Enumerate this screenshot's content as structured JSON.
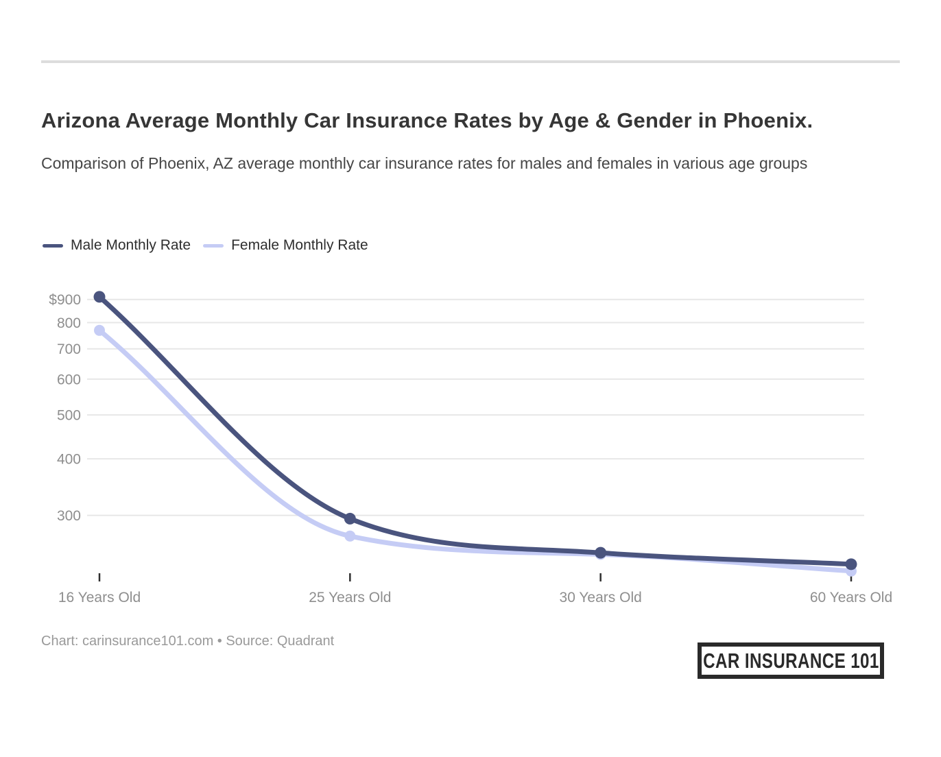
{
  "chart_data": {
    "type": "line",
    "title": "Arizona Average Monthly Car Insurance Rates by Age & Gender in Phoenix.",
    "subtitle": "Comparison of Phoenix, AZ average monthly car insurance rates for males and females in various age groups",
    "x_categories": [
      "16 Years Old",
      "25 Years Old",
      "30 Years Old",
      "60 Years Old"
    ],
    "series": [
      {
        "name": "Male Monthly Rate",
        "color": "#4a547e",
        "values": [
          912,
          295,
          248,
          234
        ]
      },
      {
        "name": "Female Monthly Rate",
        "color": "#c5ccf5",
        "values": [
          769,
          270,
          246,
          226
        ]
      }
    ],
    "y_axis": {
      "scale": "log",
      "tick_values": [
        900,
        800,
        700,
        600,
        500,
        400,
        300
      ],
      "tick_labels": [
        "$900",
        "800",
        "700",
        "600",
        "500",
        "400",
        "300"
      ],
      "range_approx": [
        215,
        930
      ]
    },
    "grid": "horizontal",
    "legend_position": "top-left",
    "xlabel": "",
    "ylabel": ""
  },
  "footer": {
    "credit": "Chart: carinsurance101.com • Source: Quadrant",
    "logo_text": "CAR INSURANCE 101"
  }
}
